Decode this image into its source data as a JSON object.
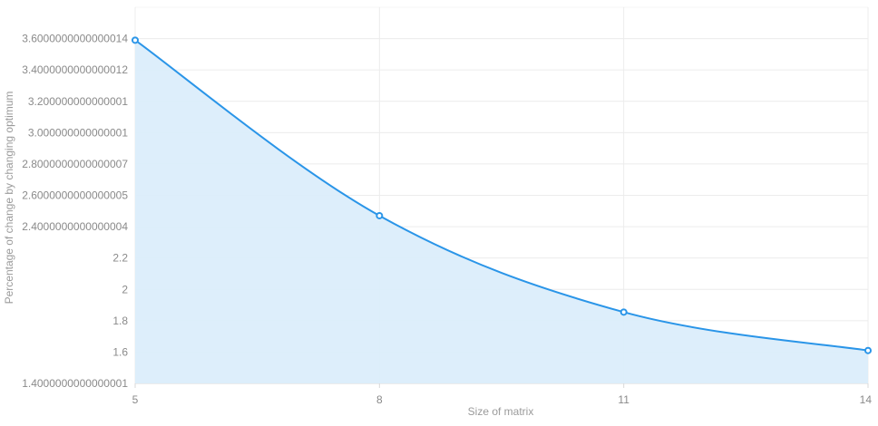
{
  "chart_data": {
    "type": "area",
    "title": "",
    "xlabel": "Size of matrix",
    "ylabel": "Percentage of change by changing optimum",
    "x": [
      5,
      8,
      11,
      14
    ],
    "series": [
      {
        "values": [
          3.59,
          2.47,
          1.855,
          1.61
        ]
      }
    ],
    "xlim": [
      5,
      14
    ],
    "ylim": [
      1.4,
      3.8
    ],
    "x_ticks": [
      5,
      8,
      11,
      14
    ],
    "x_tick_labels": [
      "5",
      "8",
      "11",
      "14"
    ],
    "y_ticks": [
      1.4,
      1.6,
      1.8,
      2.0,
      2.2,
      2.4,
      2.6,
      2.8,
      3.0,
      3.2,
      3.4,
      3.6
    ],
    "y_tick_labels": [
      "1.4000000000000001",
      "1.6",
      "1.8",
      "2",
      "2.2",
      "2.4000000000000004",
      "2.6000000000000005",
      "2.8000000000000007",
      "3.000000000000001",
      "3.200000000000001",
      "3.4000000000000012",
      "3.6000000000000014"
    ],
    "grid": true,
    "legend": "none",
    "colors": {
      "line": "#2a95e8",
      "fill": "#dbedfb",
      "grid": "#ececec",
      "axis": "#d9d9d9"
    }
  }
}
